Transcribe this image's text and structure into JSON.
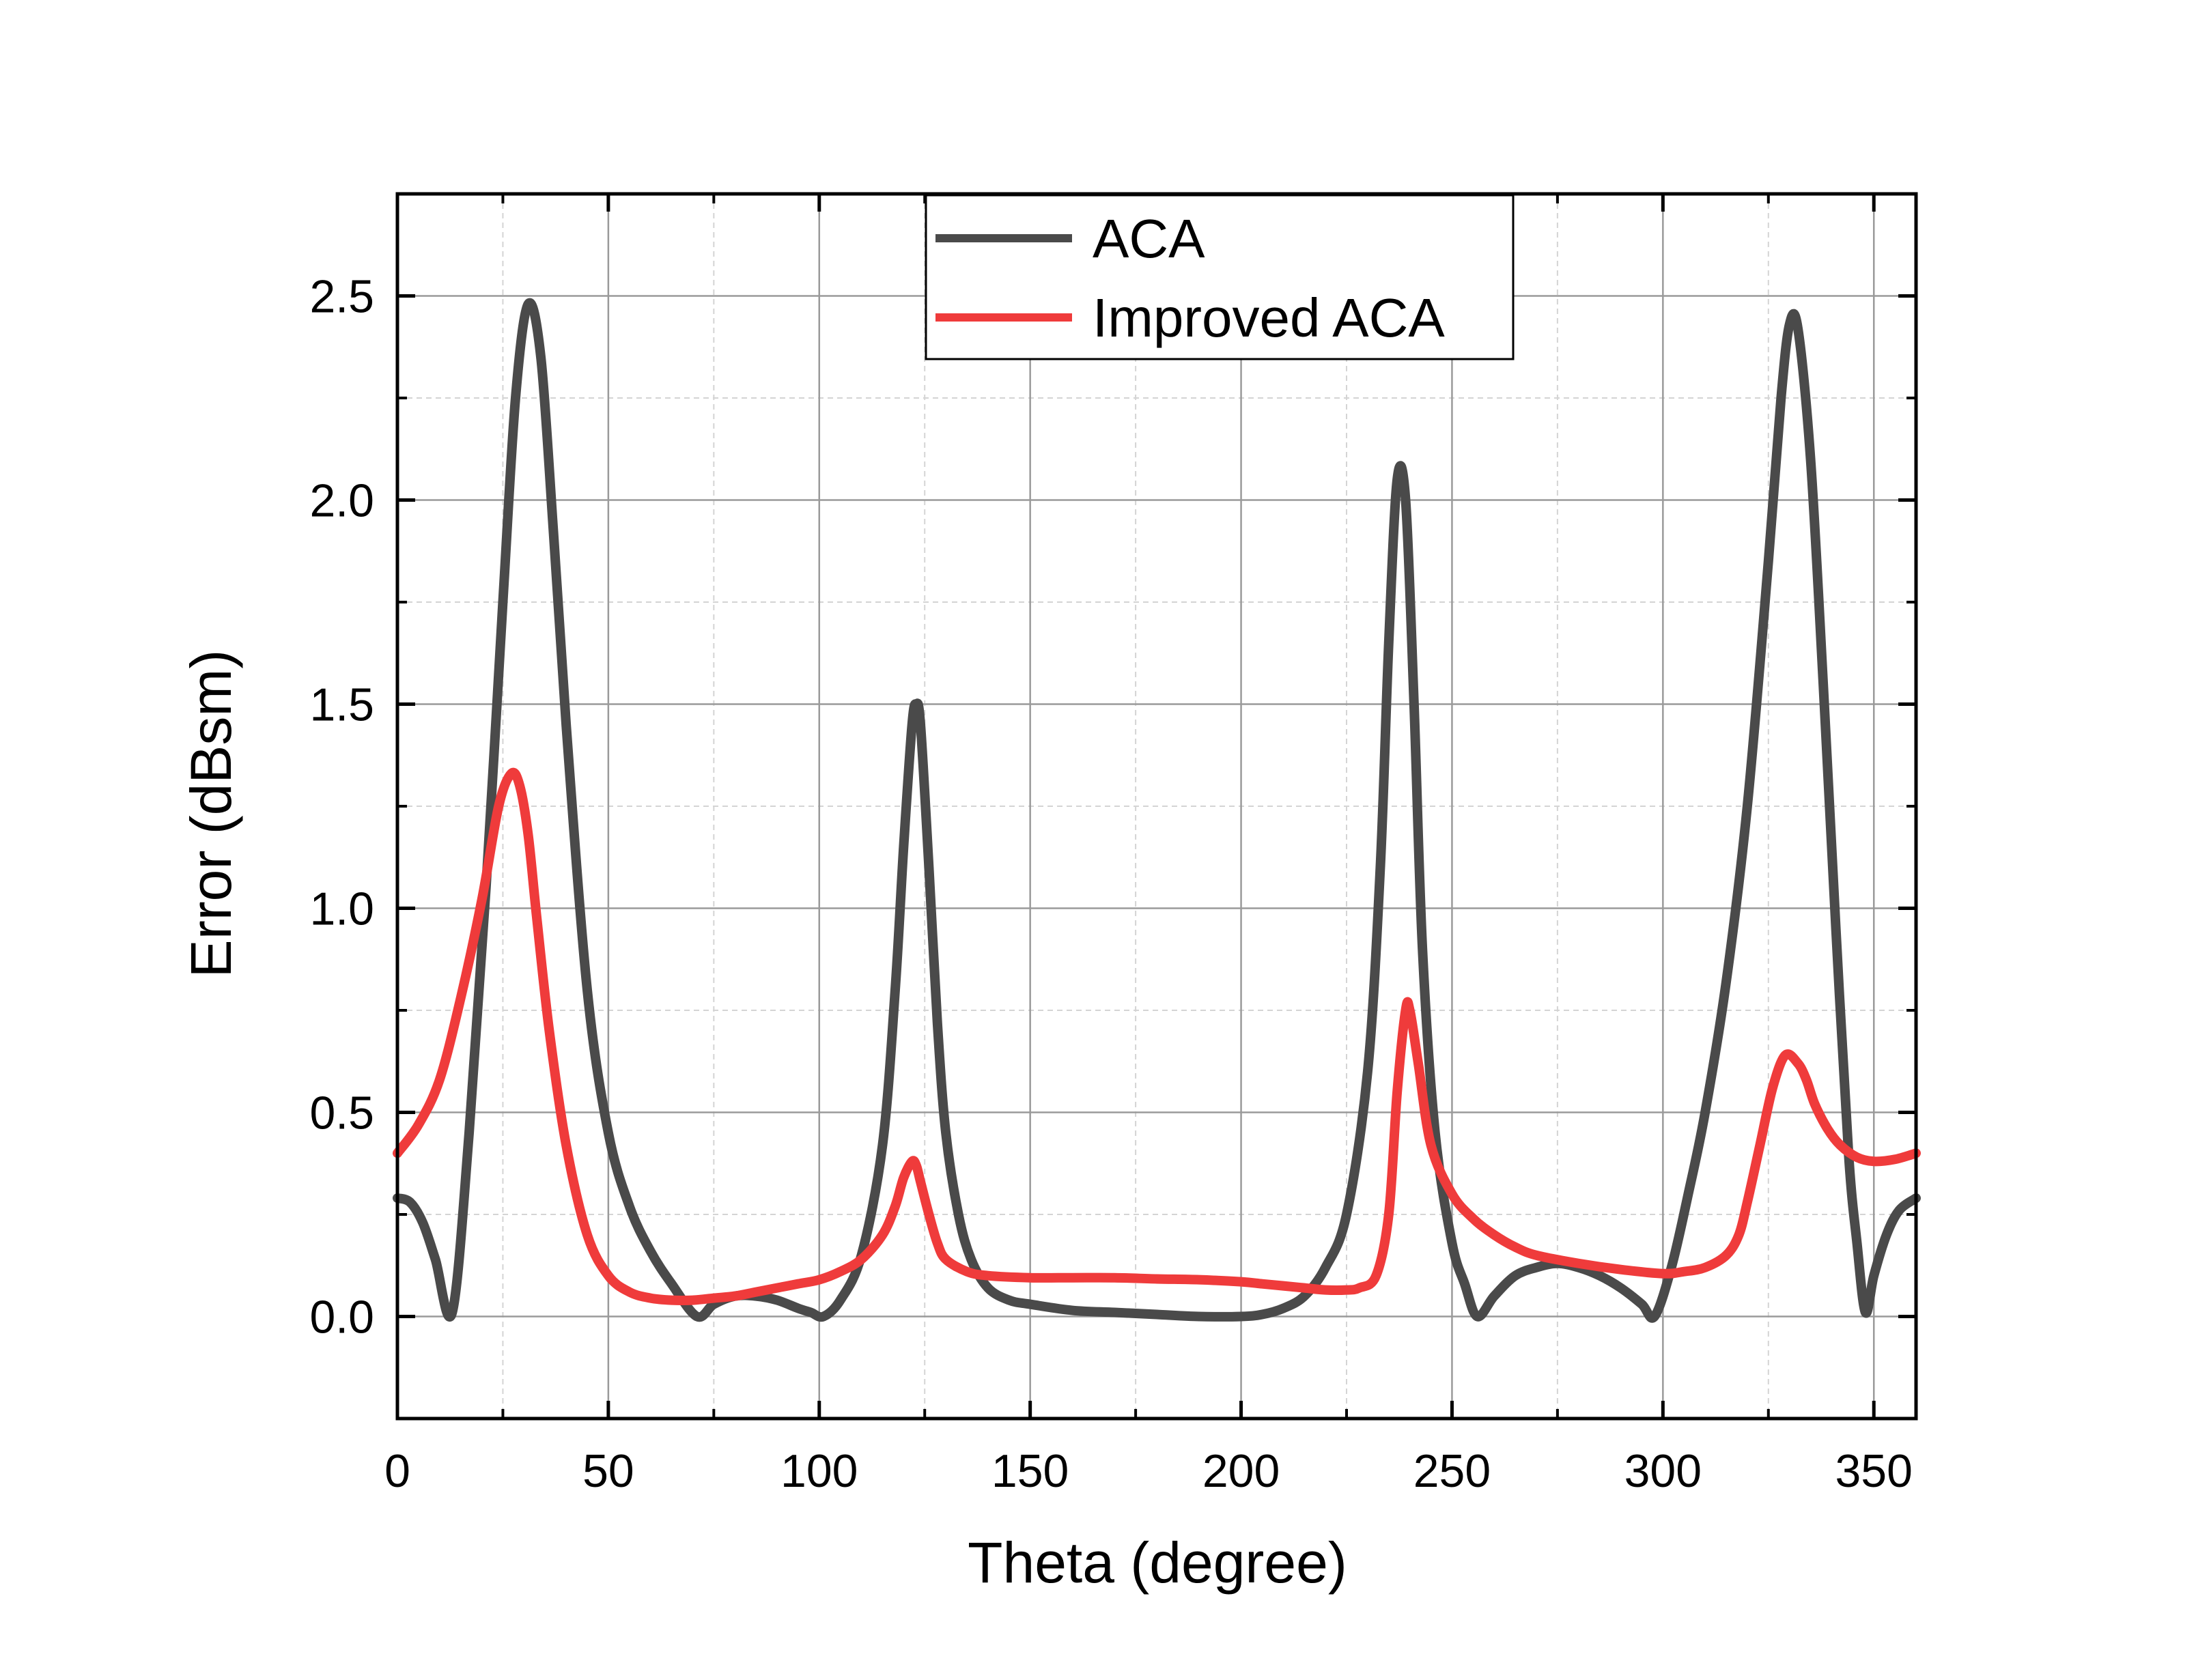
{
  "colors": {
    "aca": "#4a4a4a",
    "improved_aca": "#ef3b3b",
    "grid_major": "#9a9a9a",
    "grid_minor": "#d4d4d4",
    "axis": "#000000"
  },
  "chart_data": {
    "type": "line",
    "xlabel": "Theta (degree)",
    "ylabel": "Error (dBsm)",
    "xlim": [
      0,
      360
    ],
    "ylim": [
      -0.25,
      2.75
    ],
    "xticks": [
      0,
      50,
      100,
      150,
      200,
      250,
      300,
      350
    ],
    "xtick_labels": [
      "0",
      "50",
      "100",
      "150",
      "200",
      "250",
      "300",
      "350"
    ],
    "yticks": [
      0.0,
      0.5,
      1.0,
      1.5,
      2.0,
      2.5
    ],
    "ytick_labels": [
      "0.0",
      "0.5",
      "1.0",
      "1.5",
      "2.0",
      "2.5"
    ],
    "grid": true,
    "minor_grid": true,
    "legend_position": "top-center",
    "series": [
      {
        "name": "ACA",
        "color": "#4a4a4a",
        "x": [
          0,
          3,
          6,
          9,
          13,
          17,
          21,
          25,
          28,
          31,
          34,
          37,
          40,
          45,
          50,
          55,
          60,
          65,
          71,
          75,
          80,
          85,
          90,
          95,
          98,
          101,
          105,
          110,
          115,
          118,
          120,
          122,
          123,
          124,
          126,
          128,
          130,
          133,
          136,
          140,
          145,
          150,
          160,
          170,
          180,
          190,
          200,
          205,
          210,
          215,
          220,
          225,
          230,
          233,
          235,
          237,
          239,
          241,
          243,
          246,
          250,
          253,
          256,
          260,
          265,
          270,
          275,
          280,
          285,
          290,
          295,
          298,
          302,
          306,
          310,
          315,
          320,
          325,
          328,
          330,
          332,
          335,
          338,
          341,
          344,
          346,
          348,
          350,
          353,
          356,
          360
        ],
        "y": [
          0.29,
          0.28,
          0.23,
          0.14,
          0.01,
          0.45,
          1.05,
          1.75,
          2.25,
          2.48,
          2.35,
          1.92,
          1.45,
          0.8,
          0.45,
          0.27,
          0.16,
          0.08,
          0.0,
          0.03,
          0.05,
          0.05,
          0.04,
          0.02,
          0.01,
          0.0,
          0.04,
          0.15,
          0.42,
          0.8,
          1.15,
          1.45,
          1.5,
          1.45,
          1.1,
          0.72,
          0.45,
          0.25,
          0.14,
          0.07,
          0.04,
          0.03,
          0.015,
          0.01,
          0.005,
          0.0,
          0.0,
          0.005,
          0.02,
          0.05,
          0.12,
          0.25,
          0.6,
          1.1,
          1.65,
          2.05,
          2.0,
          1.5,
          0.9,
          0.45,
          0.18,
          0.08,
          0.0,
          0.05,
          0.1,
          0.12,
          0.13,
          0.12,
          0.1,
          0.07,
          0.03,
          0.0,
          0.12,
          0.3,
          0.5,
          0.82,
          1.25,
          1.85,
          2.25,
          2.43,
          2.42,
          2.1,
          1.55,
          0.95,
          0.4,
          0.18,
          0.01,
          0.1,
          0.2,
          0.26,
          0.29
        ]
      },
      {
        "name": "Improved ACA",
        "color": "#ef3b3b",
        "x": [
          0,
          5,
          10,
          15,
          20,
          24,
          27,
          29,
          31,
          33,
          36,
          40,
          45,
          50,
          55,
          60,
          65,
          70,
          75,
          80,
          85,
          90,
          95,
          100,
          105,
          110,
          115,
          118,
          120,
          122,
          123,
          124,
          126,
          128,
          130,
          135,
          140,
          150,
          160,
          170,
          180,
          190,
          200,
          205,
          210,
          215,
          220,
          225,
          228,
          232,
          235,
          237,
          239,
          240,
          242,
          245,
          250,
          255,
          260,
          265,
          270,
          280,
          290,
          300,
          305,
          310,
          315,
          318,
          320,
          323,
          326,
          329,
          332,
          334,
          336,
          339,
          342,
          346,
          350,
          355,
          360
        ],
        "y": [
          0.4,
          0.47,
          0.58,
          0.78,
          1.02,
          1.25,
          1.33,
          1.3,
          1.18,
          0.98,
          0.7,
          0.42,
          0.2,
          0.1,
          0.06,
          0.045,
          0.04,
          0.04,
          0.045,
          0.05,
          0.06,
          0.07,
          0.08,
          0.09,
          0.11,
          0.14,
          0.2,
          0.27,
          0.34,
          0.38,
          0.37,
          0.33,
          0.25,
          0.18,
          0.14,
          0.11,
          0.1,
          0.095,
          0.095,
          0.095,
          0.092,
          0.09,
          0.085,
          0.08,
          0.075,
          0.07,
          0.065,
          0.065,
          0.07,
          0.1,
          0.25,
          0.55,
          0.75,
          0.75,
          0.62,
          0.42,
          0.3,
          0.24,
          0.2,
          0.17,
          0.15,
          0.13,
          0.115,
          0.105,
          0.11,
          0.12,
          0.15,
          0.2,
          0.28,
          0.42,
          0.56,
          0.64,
          0.62,
          0.58,
          0.52,
          0.46,
          0.42,
          0.39,
          0.38,
          0.385,
          0.4
        ]
      }
    ]
  }
}
